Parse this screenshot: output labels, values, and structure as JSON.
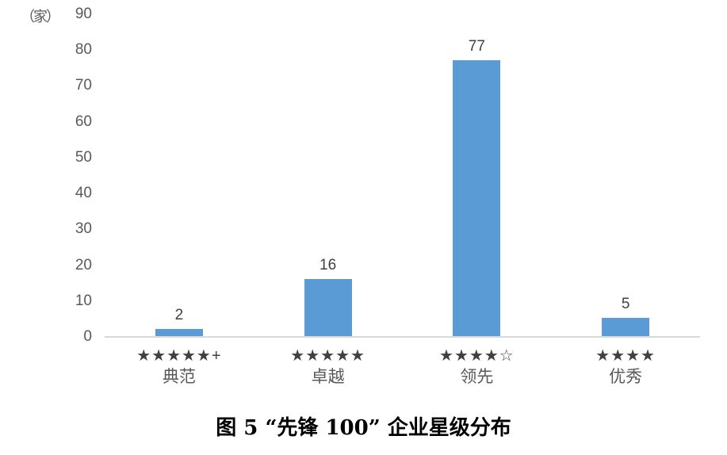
{
  "chart_data": {
    "type": "bar",
    "title": "图 5 “先锋 100” 企业星级分布",
    "ylabel": "（家）",
    "xlabel": "",
    "ylim": [
      0,
      90
    ],
    "yticks": [
      0,
      10,
      20,
      30,
      40,
      50,
      60,
      70,
      80,
      90
    ],
    "grid": false,
    "legend": false,
    "categories": [
      "典范",
      "卓越",
      "领先",
      "优秀"
    ],
    "category_stars": [
      "★★★★★+",
      "★★★★★",
      "★★★★☆",
      "★★★★"
    ],
    "values": [
      2,
      16,
      77,
      5
    ],
    "bar_color": "#5B9BD5",
    "axis_color": "#D9D9D9",
    "tick_color": "#595959",
    "label_color": "#404040"
  }
}
